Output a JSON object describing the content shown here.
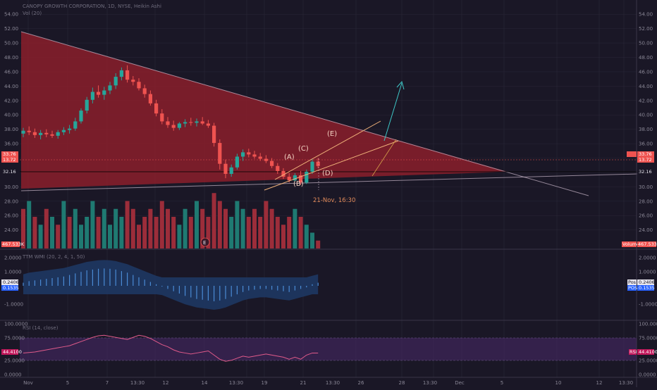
{
  "header": {
    "title": "CANOPY GROWTH CORPORATION, 1D, NYSE, Heikin Ashi",
    "volume_label": "Vol (20)",
    "ttm_label": "TTM WMI (20, 2, 4, 1, 50)",
    "rsi_label": "RSI (14, close)"
  },
  "chart_data": [
    {
      "type": "candlestick",
      "panel": "price",
      "yticks": [
        "54.00",
        "52.00",
        "50.00",
        "48.00",
        "46.00",
        "44.00",
        "42.00",
        "40.00",
        "38.00",
        "36.00",
        "34.00",
        "32.00",
        "30.00",
        "28.00",
        "26.00",
        "24.00"
      ],
      "ylim": [
        22.5,
        55
      ],
      "candles": [
        [
          37.4,
          38.2,
          36.9,
          37.8
        ],
        [
          37.8,
          38.4,
          37.2,
          37.6
        ],
        [
          37.6,
          38.1,
          36.8,
          37.2
        ],
        [
          37.2,
          37.9,
          36.6,
          37.5
        ],
        [
          37.5,
          38.0,
          36.9,
          37.3
        ],
        [
          37.3,
          37.8,
          36.8,
          37.1
        ],
        [
          37.1,
          37.9,
          36.7,
          37.6
        ],
        [
          37.6,
          38.3,
          37.2,
          37.9
        ],
        [
          37.9,
          38.6,
          37.4,
          38.1
        ],
        [
          38.1,
          39.6,
          37.8,
          39.1
        ],
        [
          39.1,
          40.9,
          38.8,
          40.6
        ],
        [
          40.6,
          42.5,
          40.2,
          42.1
        ],
        [
          42.1,
          43.8,
          41.6,
          43.2
        ],
        [
          43.2,
          44.1,
          42.4,
          42.8
        ],
        [
          42.8,
          43.9,
          42.1,
          43.4
        ],
        [
          43.4,
          44.6,
          42.9,
          44.1
        ],
        [
          44.1,
          45.8,
          43.6,
          45.3
        ],
        [
          45.3,
          46.6,
          44.8,
          46.2
        ],
        [
          46.2,
          46.9,
          44.5,
          44.9
        ],
        [
          44.9,
          45.4,
          44.1,
          44.6
        ],
        [
          44.6,
          45.1,
          43.4,
          43.7
        ],
        [
          43.7,
          44.2,
          42.4,
          42.9
        ],
        [
          42.9,
          43.4,
          41.3,
          41.6
        ],
        [
          41.6,
          42.1,
          39.8,
          40.2
        ],
        [
          40.2,
          40.8,
          38.7,
          39.1
        ],
        [
          39.1,
          39.7,
          38.2,
          38.6
        ],
        [
          38.6,
          39.2,
          37.8,
          38.2
        ],
        [
          38.2,
          39.0,
          37.9,
          38.8
        ],
        [
          38.8,
          39.4,
          38.3,
          39.0
        ],
        [
          39.0,
          39.6,
          38.5,
          38.9
        ],
        [
          38.9,
          39.5,
          38.4,
          39.1
        ],
        [
          39.1,
          39.7,
          38.6,
          38.8
        ],
        [
          38.8,
          39.3,
          38.2,
          38.5
        ],
        [
          38.5,
          38.9,
          35.6,
          36.1
        ],
        [
          36.1,
          36.6,
          32.4,
          33.2
        ],
        [
          33.2,
          33.8,
          31.2,
          31.8
        ],
        [
          31.8,
          33.1,
          31.4,
          32.7
        ],
        [
          32.7,
          34.6,
          32.4,
          34.2
        ],
        [
          34.2,
          35.2,
          33.6,
          34.8
        ],
        [
          34.8,
          35.3,
          34.1,
          34.5
        ],
        [
          34.5,
          35.0,
          33.9,
          34.2
        ],
        [
          34.2,
          34.7,
          33.6,
          33.9
        ],
        [
          33.9,
          34.4,
          33.3,
          33.6
        ],
        [
          33.6,
          34.0,
          32.6,
          32.9
        ],
        [
          32.9,
          33.3,
          31.8,
          32.2
        ],
        [
          32.2,
          32.6,
          31.1,
          31.4
        ],
        [
          31.4,
          31.9,
          30.6,
          30.9
        ],
        [
          30.9,
          31.9,
          30.7,
          31.6
        ],
        [
          31.6,
          32.2,
          30.3,
          30.6
        ],
        [
          30.6,
          32.4,
          30.4,
          32.1
        ],
        [
          32.1,
          33.9,
          31.8,
          33.5
        ],
        [
          33.5,
          34.0,
          32.6,
          32.9
        ]
      ],
      "current_price": "33.76",
      "current_price_sub": "13.72",
      "hline_value": "32.16",
      "labels": [
        "(A)",
        "(B)",
        "(C)",
        "(D)",
        "(E)"
      ],
      "annotation": "21-Nov, 16:30",
      "earnings_marker": "E"
    },
    {
      "type": "bar",
      "panel": "volume",
      "values": [
        5,
        6,
        4,
        3,
        5,
        4,
        3,
        6,
        4,
        5,
        3,
        4,
        6,
        4,
        5,
        3,
        5,
        4,
        6,
        5,
        3,
        4,
        5,
        4,
        6,
        5,
        4,
        3,
        5,
        4,
        6,
        5,
        4,
        7,
        6,
        5,
        4,
        6,
        5,
        4,
        5,
        4,
        6,
        5,
        4,
        3,
        4,
        5,
        4,
        3,
        2,
        1
      ],
      "colors": [
        "r",
        "g",
        "r",
        "g",
        "r",
        "g",
        "r",
        "g",
        "r",
        "g",
        "g",
        "g",
        "g",
        "r",
        "g",
        "g",
        "g",
        "g",
        "r",
        "r",
        "r",
        "r",
        "r",
        "r",
        "r",
        "r",
        "r",
        "g",
        "g",
        "r",
        "g",
        "r",
        "r",
        "r",
        "r",
        "r",
        "g",
        "g",
        "g",
        "r",
        "r",
        "r",
        "r",
        "r",
        "r",
        "r",
        "r",
        "g",
        "r",
        "g",
        "g",
        "r"
      ],
      "current_volume": "467.533K",
      "volume_tag": "Volume"
    },
    {
      "type": "histogram",
      "panel": "ttm",
      "yticks": [
        "2.0000",
        "1.0000",
        "",
        "-1.0000"
      ],
      "values": [
        0.2,
        0.3,
        0.35,
        0.4,
        0.45,
        0.5,
        0.55,
        0.6,
        0.7,
        0.8,
        0.9,
        1.0,
        1.05,
        1.1,
        1.12,
        1.1,
        1.05,
        0.95,
        0.85,
        0.7,
        0.55,
        0.4,
        0.25,
        0.1,
        -0.05,
        -0.2,
        -0.35,
        -0.5,
        -0.65,
        -0.75,
        -0.85,
        -0.9,
        -0.95,
        -1.0,
        -0.95,
        -0.85,
        -0.7,
        -0.55,
        -0.4,
        -0.3,
        -0.25,
        -0.2,
        -0.2,
        -0.25,
        -0.3,
        -0.35,
        -0.4,
        -0.3,
        -0.2,
        -0.1,
        0.1,
        0.2
      ],
      "value_1": "0.2406",
      "value_2": "0.1535",
      "tag_1": "Pos",
      "tag_2": "POS"
    },
    {
      "type": "line",
      "panel": "rsi",
      "yticks": [
        "100.0000",
        "75.0000",
        "",
        "25.0000",
        "0.0000"
      ],
      "values": [
        44,
        45,
        46,
        48,
        50,
        52,
        54,
        56,
        58,
        62,
        66,
        70,
        74,
        77,
        78,
        76,
        74,
        72,
        70,
        74,
        78,
        76,
        72,
        66,
        60,
        56,
        50,
        46,
        44,
        42,
        44,
        46,
        48,
        40,
        32,
        28,
        30,
        34,
        38,
        36,
        38,
        40,
        42,
        40,
        38,
        36,
        32,
        36,
        32,
        40,
        44,
        44
      ],
      "current_value": "44.4100",
      "tag": "RSI"
    }
  ],
  "x_axis": [
    "Nov",
    "5",
    "7",
    "13:30",
    "12",
    "14",
    "13:30",
    "19",
    "21",
    "13:30",
    "26",
    "28",
    "13:30",
    "Dec",
    "5",
    "10",
    "12",
    "13:30"
  ],
  "colors": {
    "background": "#1a1726",
    "up": "#26a69a",
    "down": "#ef5350",
    "triangle": "#8b1e2b",
    "grid": "#2a2738",
    "rsi_band": "#4a2a6a"
  }
}
